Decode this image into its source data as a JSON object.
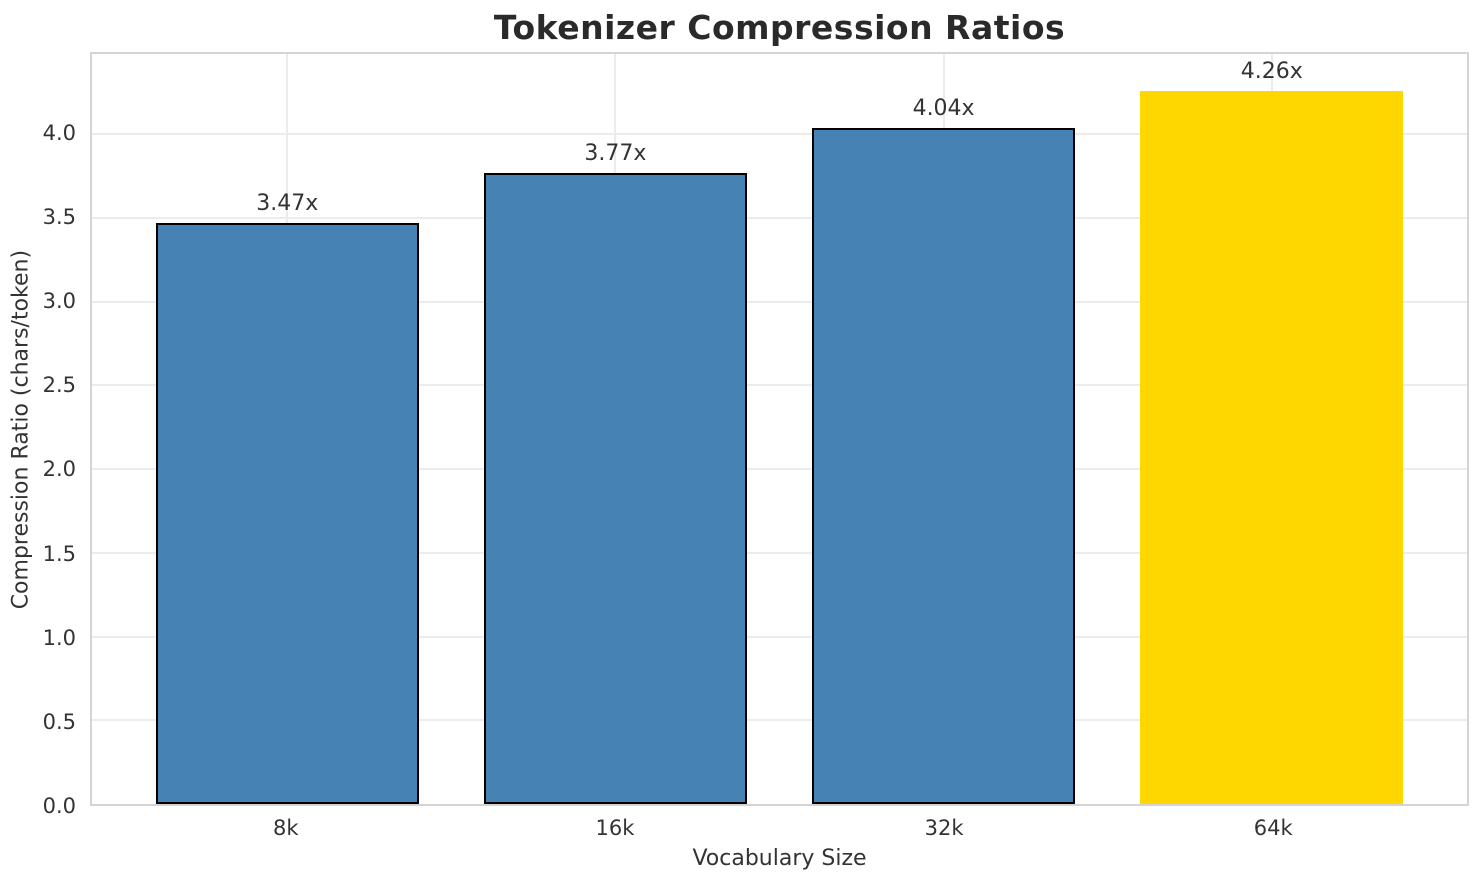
{
  "chart_data": {
    "type": "bar",
    "title": "Tokenizer Compression Ratios",
    "xlabel": "Vocabulary Size",
    "ylabel": "Compression Ratio (chars/token)",
    "categories": [
      "8k",
      "16k",
      "32k",
      "64k"
    ],
    "values": [
      3.47,
      3.77,
      4.04,
      4.26
    ],
    "bar_labels": [
      "3.47x",
      "3.77x",
      "4.04x",
      "4.26x"
    ],
    "ylim": [
      0,
      4.48
    ],
    "yticks": [
      0.0,
      0.5,
      1.0,
      1.5,
      2.0,
      2.5,
      3.0,
      3.5,
      4.0
    ],
    "ytick_labels": [
      "0.0",
      "0.5",
      "1.0",
      "1.5",
      "2.0",
      "2.5",
      "3.0",
      "3.5",
      "4.0"
    ],
    "grid": true,
    "legend": "none",
    "bar_colors": [
      "#4682B4",
      "#4682B4",
      "#4682B4",
      "#FFD700"
    ],
    "bar_edge_colors": [
      "#000000",
      "#000000",
      "#000000",
      "none"
    ],
    "base_color": "#4682B4",
    "highlight_color": "#FFD700",
    "grid_color": "#ececec",
    "spine_color": "#d4d4d4",
    "text_color": "#333333"
  }
}
